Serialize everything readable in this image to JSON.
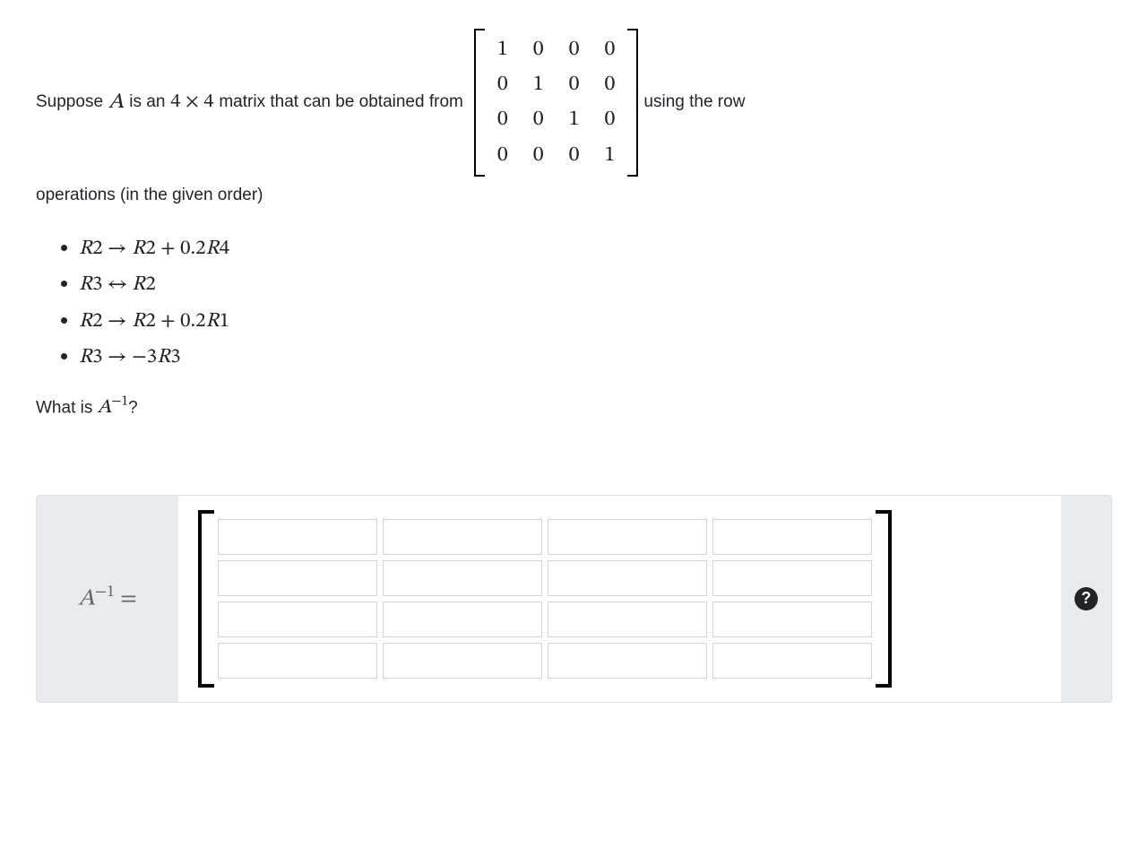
{
  "problem": {
    "intro_prefix": "Suppose ",
    "matrix_var": "A",
    "intro_mid1": " is an ",
    "dim_text": "4 × 4",
    "intro_mid2": " matrix that can be obtained from ",
    "intro_suffix": " using the row",
    "intro_line2": "operations (in the given order)",
    "identity": {
      "rows": [
        [
          "1",
          "0",
          "0",
          "0"
        ],
        [
          "0",
          "1",
          "0",
          "0"
        ],
        [
          "0",
          "0",
          "1",
          "0"
        ],
        [
          "0",
          "0",
          "0",
          "1"
        ]
      ]
    },
    "operations": [
      "R2 → R2 + 0.2R4",
      "R3 ↔ R2",
      "R2 → R2 + 0.2R1",
      "R3 → −3R3"
    ],
    "question_prefix": "What is ",
    "question_expr_var": "A",
    "question_expr_sup": "−1",
    "question_suffix": "?"
  },
  "answer": {
    "label_var": "A",
    "label_sup": "−1",
    "label_eq": " =",
    "grid": {
      "rows": 4,
      "cols": 4
    },
    "help_tooltip": "Help",
    "help_glyph": "?"
  },
  "style": {
    "bg": "#ffffff",
    "text": "#212529",
    "panel_bg": "#e9ecef",
    "border": "#dee2e6",
    "input_border": "#ced4da",
    "label_color": "#626a71",
    "bracket_color": "#000000",
    "help_bg": "#212529",
    "help_fg": "#ffffff",
    "body_fontsize": 19,
    "math_fontsize": 23
  }
}
